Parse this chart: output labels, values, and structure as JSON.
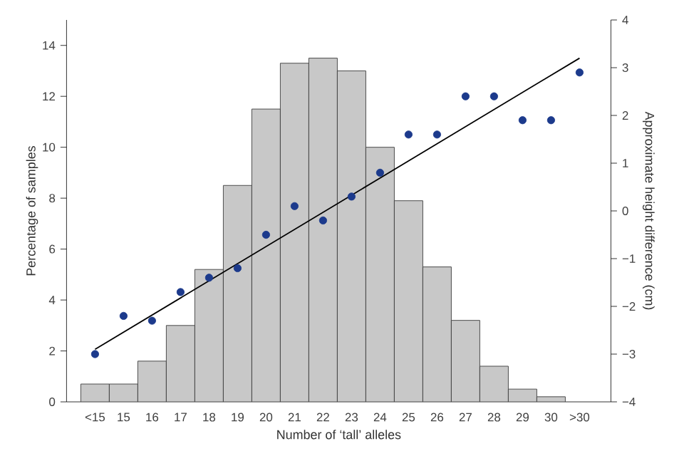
{
  "chart_data": {
    "type": "bar",
    "xlabel": "Number of ‘tall’ alleles",
    "ylabel": "Percentage of samples",
    "y2label": "Approximate height difference (cm)",
    "categories": [
      "<15",
      "15",
      "16",
      "17",
      "18",
      "19",
      "20",
      "21",
      "22",
      "23",
      "24",
      "25",
      "26",
      "27",
      "28",
      "29",
      "30",
      ">30"
    ],
    "series": [
      {
        "color": "#c8c8c8",
        "values": [
          0.7,
          0.7,
          1.6,
          3.0,
          5.2,
          8.5,
          11.5,
          13.3,
          13.5,
          13.0,
          10.0,
          7.9,
          5.3,
          3.2,
          1.4,
          0.5,
          0.2,
          null
        ]
      },
      {
        "type": "scatter",
        "axis": "y2",
        "color": "#1c3a8c",
        "marker": "circle",
        "x": [
          "<15",
          "15",
          "16",
          "17",
          "18",
          "19",
          "20",
          "21",
          "22",
          "23",
          "24",
          "25",
          "26",
          "27",
          "28",
          "29",
          "30",
          ">30"
        ],
        "values": [
          -3.0,
          -2.2,
          -2.3,
          -1.7,
          -1.4,
          -1.2,
          -0.5,
          0.1,
          -0.2,
          0.3,
          0.8,
          1.6,
          1.6,
          2.4,
          2.4,
          1.9,
          1.9,
          2.9
        ]
      },
      {
        "type": "line",
        "axis": "y2",
        "color": "#000000",
        "line_style": "solid",
        "x": [
          "<15",
          ">30"
        ],
        "values": [
          -2.9,
          3.2
        ]
      }
    ],
    "ylim": [
      0,
      15
    ],
    "yticks": [
      0,
      2,
      4,
      6,
      8,
      10,
      12,
      14
    ],
    "y2lim": [
      -4,
      4
    ],
    "y2ticks": [
      {
        "value": -4,
        "label": "−4"
      },
      {
        "value": -3,
        "label": "−3"
      },
      {
        "value": -2,
        "label": "−2"
      },
      {
        "value": -1,
        "label": "−1"
      },
      0,
      1,
      2,
      3,
      4
    ],
    "grid": false
  }
}
